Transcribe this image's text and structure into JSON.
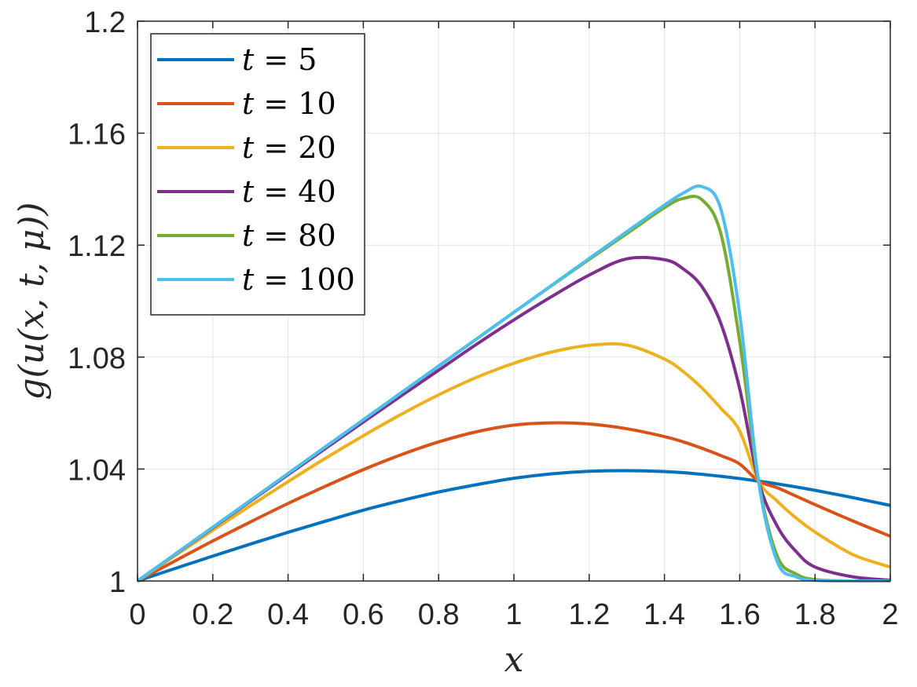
{
  "chart_data": {
    "type": "line",
    "xlabel": "x",
    "ylabel": "g(u(x, t, μ))",
    "xlim": [
      0,
      2
    ],
    "ylim": [
      1,
      1.2
    ],
    "xticks": [
      "0",
      "0.2",
      "0.4",
      "0.6",
      "0.8",
      "1",
      "1.2",
      "1.4",
      "1.6",
      "1.8",
      "2"
    ],
    "yticks": [
      "1",
      "1.04",
      "1.08",
      "1.12",
      "1.16",
      "1.2"
    ],
    "grid": true,
    "legend_position": "top-left",
    "x": [
      0,
      0.1,
      0.2,
      0.3,
      0.4,
      0.5,
      0.6,
      0.7,
      0.8,
      0.9,
      1.0,
      1.1,
      1.2,
      1.3,
      1.4,
      1.45,
      1.5,
      1.55,
      1.6,
      1.65,
      1.7,
      1.75,
      1.8,
      1.9,
      2.0
    ],
    "series": [
      {
        "name": "t = 5",
        "color": "#0072BD",
        "values": [
          1.0,
          1.0045,
          1.0089,
          1.0132,
          1.0174,
          1.0214,
          1.0253,
          1.0287,
          1.0318,
          1.0344,
          1.0367,
          1.0383,
          1.0392,
          1.0394,
          1.0391,
          1.0387,
          1.0381,
          1.0374,
          1.0366,
          1.0357,
          1.0347,
          1.0336,
          1.0324,
          1.0298,
          1.027
        ]
      },
      {
        "name": "t = 10",
        "color": "#D95319",
        "values": [
          1.0,
          1.0072,
          1.0143,
          1.0211,
          1.0277,
          1.0339,
          1.0398,
          1.0451,
          1.0497,
          1.0533,
          1.0557,
          1.0565,
          1.0561,
          1.0544,
          1.0516,
          1.0497,
          1.0474,
          1.0448,
          1.0418,
          1.0357,
          1.0333,
          1.0303,
          1.0273,
          1.0215,
          1.016
        ]
      },
      {
        "name": "t = 20",
        "color": "#EDB120",
        "values": [
          1.0,
          1.0091,
          1.0181,
          1.0269,
          1.0355,
          1.0439,
          1.0519,
          1.0595,
          1.0665,
          1.0727,
          1.0778,
          1.0818,
          1.0842,
          1.0843,
          1.0793,
          1.0748,
          1.0689,
          1.0617,
          1.0536,
          1.0357,
          1.0285,
          1.0225,
          1.0175,
          1.0095,
          1.005
        ]
      },
      {
        "name": "t = 40",
        "color": "#7E2F8E",
        "values": [
          1.0,
          1.0095,
          1.019,
          1.0285,
          1.038,
          1.0474,
          1.0568,
          1.0661,
          1.0753,
          1.0845,
          1.0933,
          1.1016,
          1.1093,
          1.1151,
          1.1148,
          1.1115,
          1.1051,
          1.092,
          1.0686,
          1.0357,
          1.0195,
          1.0105,
          1.005,
          1.0015,
          1.0003
        ]
      },
      {
        "name": "t = 80",
        "color": "#77AC30",
        "values": [
          1.0,
          1.0096,
          1.0192,
          1.0288,
          1.0384,
          1.048,
          1.0576,
          1.0672,
          1.0768,
          1.0864,
          1.096,
          1.1055,
          1.1149,
          1.1241,
          1.1334,
          1.1367,
          1.1362,
          1.124,
          1.0856,
          1.0357,
          1.0088,
          1.0025,
          1.0005,
          1.0,
          1.0
        ]
      },
      {
        "name": "t = 100",
        "color": "#4DBEEE",
        "values": [
          1.0,
          1.0096,
          1.0192,
          1.0288,
          1.0384,
          1.048,
          1.0576,
          1.0672,
          1.0768,
          1.0864,
          1.096,
          1.1056,
          1.1152,
          1.1248,
          1.1343,
          1.1386,
          1.1409,
          1.1328,
          1.0953,
          1.0357,
          1.0068,
          1.0015,
          1.0002,
          1.0,
          1.0
        ]
      }
    ]
  }
}
